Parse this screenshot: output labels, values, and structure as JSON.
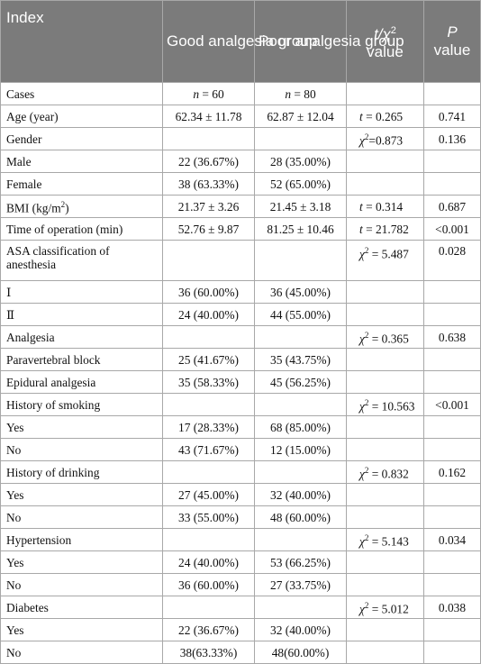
{
  "headers": {
    "index": "Index",
    "good": "Good analgesia group",
    "poor": "Poor analgesia group",
    "stat_pre": "t/χ",
    "stat_sup": "2",
    "stat_post": "value",
    "p_pre": "P",
    "p_post": "value"
  },
  "rows": [
    {
      "label": "Cases",
      "good": "n = 60",
      "poor": "n = 80",
      "stat": "",
      "p": ""
    },
    {
      "label": "Age (year)",
      "good": "62.34 ± 11.78",
      "poor": "62.87 ± 12.04",
      "stat": "t = 0.265",
      "p": "0.741"
    },
    {
      "label": "Gender",
      "good": "",
      "poor": "",
      "stat": "χ2=0.873",
      "p": "0.136"
    },
    {
      "label": "Male",
      "good": "22 (36.67%)",
      "poor": "28 (35.00%)",
      "stat": "",
      "p": ""
    },
    {
      "label": "Female",
      "good": "38 (63.33%)",
      "poor": "52 (65.00%)",
      "stat": "",
      "p": ""
    },
    {
      "label": "BMI (kg/m2)",
      "good": "21.37 ± 3.26",
      "poor": "21.45 ± 3.18",
      "stat": "t = 0.314",
      "p": "0.687"
    },
    {
      "label": "Time of operation (min)",
      "good": "52.76 ± 9.87",
      "poor": "81.25 ± 10.46",
      "stat": "t = 21.782",
      "p": "<0.001"
    },
    {
      "label": "ASA classification of anesthesia",
      "good": "",
      "poor": "",
      "stat": "χ2 = 5.487",
      "p": "0.028"
    },
    {
      "label": "Ⅰ",
      "good": "36 (60.00%)",
      "poor": "36 (45.00%)",
      "stat": "",
      "p": ""
    },
    {
      "label": "Ⅱ",
      "good": "24 (40.00%)",
      "poor": "44 (55.00%)",
      "stat": "",
      "p": ""
    },
    {
      "label": "Analgesia",
      "good": "",
      "poor": "",
      "stat": "χ2 = 0.365",
      "p": "0.638"
    },
    {
      "label": "Paravertebral block",
      "good": "25 (41.67%)",
      "poor": "35 (43.75%)",
      "stat": "",
      "p": ""
    },
    {
      "label": "Epidural analgesia",
      "good": "35 (58.33%)",
      "poor": "45 (56.25%)",
      "stat": "",
      "p": ""
    },
    {
      "label": "History of smoking",
      "good": "",
      "poor": "",
      "stat": "χ2 = 10.563",
      "p": "<0.001"
    },
    {
      "label": "Yes",
      "good": "17 (28.33%)",
      "poor": "68 (85.00%)",
      "stat": "",
      "p": ""
    },
    {
      "label": "No",
      "good": "43 (71.67%)",
      "poor": "12 (15.00%)",
      "stat": "",
      "p": ""
    },
    {
      "label": "History of drinking",
      "good": "",
      "poor": "",
      "stat": "χ2 = 0.832",
      "p": "0.162"
    },
    {
      "label": "Yes",
      "good": "27 (45.00%)",
      "poor": "32 (40.00%)",
      "stat": "",
      "p": ""
    },
    {
      "label": "No",
      "good": "33 (55.00%)",
      "poor": "48 (60.00%)",
      "stat": "",
      "p": ""
    },
    {
      "label": "Hypertension",
      "good": "",
      "poor": "",
      "stat": "χ2 = 5.143",
      "p": "0.034"
    },
    {
      "label": "Yes",
      "good": "24 (40.00%)",
      "poor": "53 (66.25%)",
      "stat": "",
      "p": ""
    },
    {
      "label": "No",
      "good": "36 (60.00%)",
      "poor": "27 (33.75%)",
      "stat": "",
      "p": ""
    },
    {
      "label": "Diabetes",
      "good": "",
      "poor": "",
      "stat": "χ2 = 5.012",
      "p": "0.038"
    },
    {
      "label": "Yes",
      "good": "22 (36.67%)",
      "poor": "32 (40.00%)",
      "stat": "",
      "p": ""
    },
    {
      "label": "No",
      "good": "38(63.33%)",
      "poor": "48(60.00%)",
      "stat": "",
      "p": ""
    }
  ]
}
